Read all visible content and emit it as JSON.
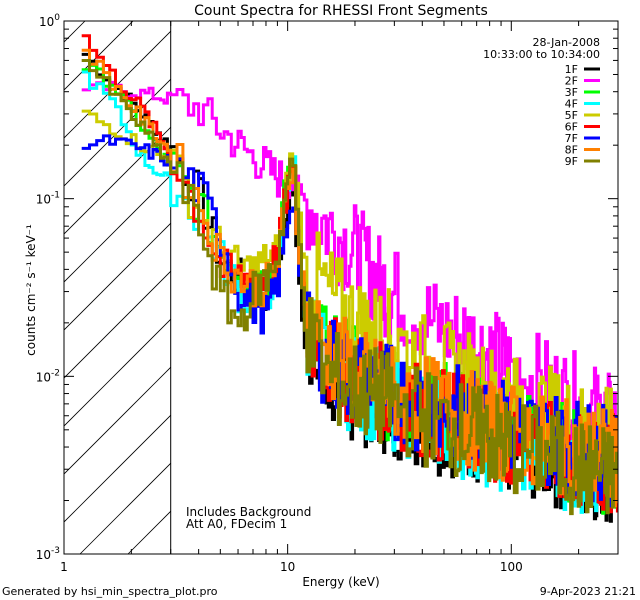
{
  "chart_data": {
    "type": "line",
    "scale": {
      "x": "log",
      "y": "log"
    },
    "title": "Count Spectra for RHESSI Front Segments",
    "xlabel": "Energy (keV)",
    "ylabel_html": "counts cm⁻² s⁻¹ keV⁻¹",
    "xlim": [
      1,
      300
    ],
    "ylim": [
      0.001,
      1
    ],
    "x_ticks": [
      {
        "v": 1,
        "label": "1"
      },
      {
        "v": 10,
        "label": "10"
      },
      {
        "v": 100,
        "label": "100"
      }
    ],
    "y_ticks": [
      {
        "v": 1,
        "base": "10",
        "exp": "0"
      },
      {
        "v": 0.1,
        "base": "10",
        "exp": "-1"
      },
      {
        "v": 0.01,
        "base": "10",
        "exp": "-2"
      },
      {
        "v": 0.001,
        "base": "10",
        "exp": "-3"
      }
    ],
    "hatch_region": {
      "x_from": 1,
      "x_to": 3
    },
    "annotations": {
      "date": "28-Jan-2008",
      "time_range": "10:33:00 to 10:34:00",
      "background_note": "Includes Background",
      "attenuator_note": "Att A0, FDecim 1"
    },
    "series": [
      {
        "name": "1F",
        "color": "#000000",
        "points": [
          [
            1.2,
            0.65
          ],
          [
            1.6,
            0.45
          ],
          [
            2.2,
            0.3
          ],
          [
            3,
            0.19
          ],
          [
            4,
            0.1
          ],
          [
            5,
            0.045
          ],
          [
            6,
            0.035
          ],
          [
            7,
            0.03
          ],
          [
            8,
            0.03
          ],
          [
            9,
            0.04
          ],
          [
            10,
            0.1
          ],
          [
            10.5,
            0.13
          ],
          [
            11,
            0.05
          ],
          [
            11.5,
            0.02
          ],
          [
            12,
            0.012
          ],
          [
            15,
            0.0095
          ],
          [
            20,
            0.008
          ],
          [
            30,
            0.0065
          ],
          [
            40,
            0.0055
          ],
          [
            60,
            0.005
          ],
          [
            80,
            0.0045
          ],
          [
            100,
            0.004
          ],
          [
            150,
            0.0035
          ],
          [
            200,
            0.003
          ],
          [
            280,
            0.0028
          ]
        ]
      },
      {
        "name": "2F",
        "color": "#ff00ff",
        "points": [
          [
            1.2,
            0.4
          ],
          [
            1.5,
            0.42
          ],
          [
            2,
            0.4
          ],
          [
            2.5,
            0.38
          ],
          [
            3,
            0.36
          ],
          [
            4,
            0.32
          ],
          [
            5,
            0.24
          ],
          [
            6,
            0.2
          ],
          [
            7,
            0.17
          ],
          [
            8,
            0.15
          ],
          [
            9,
            0.13
          ],
          [
            10,
            0.13
          ],
          [
            11,
            0.11
          ],
          [
            12,
            0.095
          ],
          [
            15,
            0.07
          ],
          [
            20,
            0.05
          ],
          [
            25,
            0.035
          ],
          [
            30,
            0.028
          ],
          [
            40,
            0.022
          ],
          [
            50,
            0.018
          ],
          [
            60,
            0.017
          ],
          [
            80,
            0.013
          ],
          [
            100,
            0.011
          ],
          [
            150,
            0.0085
          ],
          [
            200,
            0.007
          ],
          [
            280,
            0.0055
          ]
        ]
      },
      {
        "name": "3F",
        "color": "#00ff00",
        "points": [
          [
            1.2,
            0.55
          ],
          [
            1.6,
            0.45
          ],
          [
            2.2,
            0.25
          ],
          [
            3,
            0.15
          ],
          [
            4,
            0.09
          ],
          [
            5,
            0.05
          ],
          [
            6,
            0.04
          ],
          [
            7,
            0.035
          ],
          [
            8,
            0.035
          ],
          [
            9,
            0.05
          ],
          [
            10,
            0.15
          ],
          [
            10.5,
            0.18
          ],
          [
            11,
            0.07
          ],
          [
            12,
            0.025
          ],
          [
            15,
            0.014
          ],
          [
            20,
            0.01
          ],
          [
            30,
            0.008
          ],
          [
            40,
            0.007
          ],
          [
            60,
            0.006
          ],
          [
            80,
            0.005
          ],
          [
            100,
            0.0048
          ],
          [
            150,
            0.004
          ],
          [
            200,
            0.0035
          ],
          [
            280,
            0.003
          ]
        ]
      },
      {
        "name": "4F",
        "color": "#00ffff",
        "points": [
          [
            1.2,
            0.5
          ],
          [
            1.6,
            0.35
          ],
          [
            2.2,
            0.17
          ],
          [
            3,
            0.12
          ],
          [
            4,
            0.075
          ],
          [
            5,
            0.045
          ],
          [
            6,
            0.03
          ],
          [
            7,
            0.026
          ],
          [
            8,
            0.028
          ],
          [
            9,
            0.045
          ],
          [
            10,
            0.13
          ],
          [
            10.5,
            0.16
          ],
          [
            11,
            0.06
          ],
          [
            12,
            0.02
          ],
          [
            15,
            0.011
          ],
          [
            20,
            0.009
          ],
          [
            30,
            0.007
          ],
          [
            40,
            0.006
          ],
          [
            60,
            0.005
          ],
          [
            80,
            0.0045
          ],
          [
            100,
            0.004
          ],
          [
            150,
            0.0035
          ],
          [
            200,
            0.0032
          ],
          [
            280,
            0.003
          ]
        ]
      },
      {
        "name": "5F",
        "color": "#cccc00",
        "points": [
          [
            1.2,
            0.3
          ],
          [
            1.6,
            0.25
          ],
          [
            2.2,
            0.2
          ],
          [
            3,
            0.16
          ],
          [
            4,
            0.08
          ],
          [
            5,
            0.05
          ],
          [
            6,
            0.04
          ],
          [
            7,
            0.04
          ],
          [
            8,
            0.045
          ],
          [
            9,
            0.05
          ],
          [
            10,
            0.15
          ],
          [
            10.5,
            0.19
          ],
          [
            11,
            0.09
          ],
          [
            12,
            0.04
          ],
          [
            15,
            0.03
          ],
          [
            20,
            0.02
          ],
          [
            30,
            0.016
          ],
          [
            40,
            0.012
          ],
          [
            60,
            0.01
          ],
          [
            80,
            0.008
          ],
          [
            100,
            0.007
          ],
          [
            150,
            0.006
          ],
          [
            200,
            0.005
          ],
          [
            280,
            0.0045
          ]
        ]
      },
      {
        "name": "6F",
        "color": "#ff0000",
        "points": [
          [
            1.2,
            0.8
          ],
          [
            1.6,
            0.5
          ],
          [
            2.2,
            0.32
          ],
          [
            3,
            0.17
          ],
          [
            4,
            0.08
          ],
          [
            5,
            0.04
          ],
          [
            6,
            0.036
          ],
          [
            7,
            0.035
          ],
          [
            8,
            0.035
          ],
          [
            9,
            0.05
          ],
          [
            10,
            0.12
          ],
          [
            10.5,
            0.14
          ],
          [
            11,
            0.06
          ],
          [
            12,
            0.02
          ],
          [
            15,
            0.012
          ],
          [
            20,
            0.0095
          ],
          [
            30,
            0.0075
          ],
          [
            40,
            0.0065
          ],
          [
            60,
            0.0055
          ],
          [
            80,
            0.005
          ],
          [
            100,
            0.0045
          ],
          [
            150,
            0.004
          ],
          [
            200,
            0.0035
          ],
          [
            280,
            0.0032
          ]
        ]
      },
      {
        "name": "7F",
        "color": "#0000ff",
        "points": [
          [
            1.2,
            0.2
          ],
          [
            1.6,
            0.21
          ],
          [
            2.2,
            0.19
          ],
          [
            3,
            0.16
          ],
          [
            4,
            0.11
          ],
          [
            5,
            0.06
          ],
          [
            6,
            0.03
          ],
          [
            7,
            0.025
          ],
          [
            8,
            0.022
          ],
          [
            9,
            0.035
          ],
          [
            10,
            0.08
          ],
          [
            10.5,
            0.11
          ],
          [
            11,
            0.05
          ],
          [
            12,
            0.02
          ],
          [
            15,
            0.012
          ],
          [
            20,
            0.01
          ],
          [
            30,
            0.008
          ],
          [
            40,
            0.007
          ],
          [
            60,
            0.006
          ],
          [
            80,
            0.0055
          ],
          [
            100,
            0.005
          ],
          [
            150,
            0.0045
          ],
          [
            200,
            0.004
          ],
          [
            280,
            0.0035
          ]
        ]
      },
      {
        "name": "8F",
        "color": "#ff8000",
        "points": [
          [
            1.2,
            0.7
          ],
          [
            1.6,
            0.45
          ],
          [
            2.2,
            0.28
          ],
          [
            3,
            0.18
          ],
          [
            4,
            0.09
          ],
          [
            5,
            0.045
          ],
          [
            6,
            0.036
          ],
          [
            7,
            0.032
          ],
          [
            8,
            0.033
          ],
          [
            9,
            0.045
          ],
          [
            10,
            0.13
          ],
          [
            10.5,
            0.15
          ],
          [
            11,
            0.06
          ],
          [
            12,
            0.022
          ],
          [
            15,
            0.014
          ],
          [
            20,
            0.01
          ],
          [
            30,
            0.008
          ],
          [
            40,
            0.007
          ],
          [
            60,
            0.006
          ],
          [
            80,
            0.005
          ],
          [
            100,
            0.0048
          ],
          [
            150,
            0.004
          ],
          [
            200,
            0.0038
          ],
          [
            280,
            0.0035
          ]
        ]
      },
      {
        "name": "9F",
        "color": "#808000",
        "points": [
          [
            1.2,
            0.6
          ],
          [
            1.6,
            0.4
          ],
          [
            2.2,
            0.25
          ],
          [
            3,
            0.15
          ],
          [
            4,
            0.07
          ],
          [
            5,
            0.028
          ],
          [
            6,
            0.02
          ],
          [
            7,
            0.03
          ],
          [
            8,
            0.035
          ],
          [
            9,
            0.05
          ],
          [
            10,
            0.14
          ],
          [
            10.5,
            0.15
          ],
          [
            11,
            0.07
          ],
          [
            12,
            0.018
          ],
          [
            15,
            0.01
          ],
          [
            20,
            0.0085
          ],
          [
            30,
            0.007
          ],
          [
            40,
            0.006
          ],
          [
            60,
            0.005
          ],
          [
            80,
            0.0045
          ],
          [
            100,
            0.004
          ],
          [
            150,
            0.0035
          ],
          [
            200,
            0.003
          ],
          [
            280,
            0.0028
          ]
        ]
      }
    ]
  },
  "footer": {
    "generated_by": "Generated by hsi_min_spectra_plot.pro",
    "timestamp": "9-Apr-2023 21:21"
  }
}
